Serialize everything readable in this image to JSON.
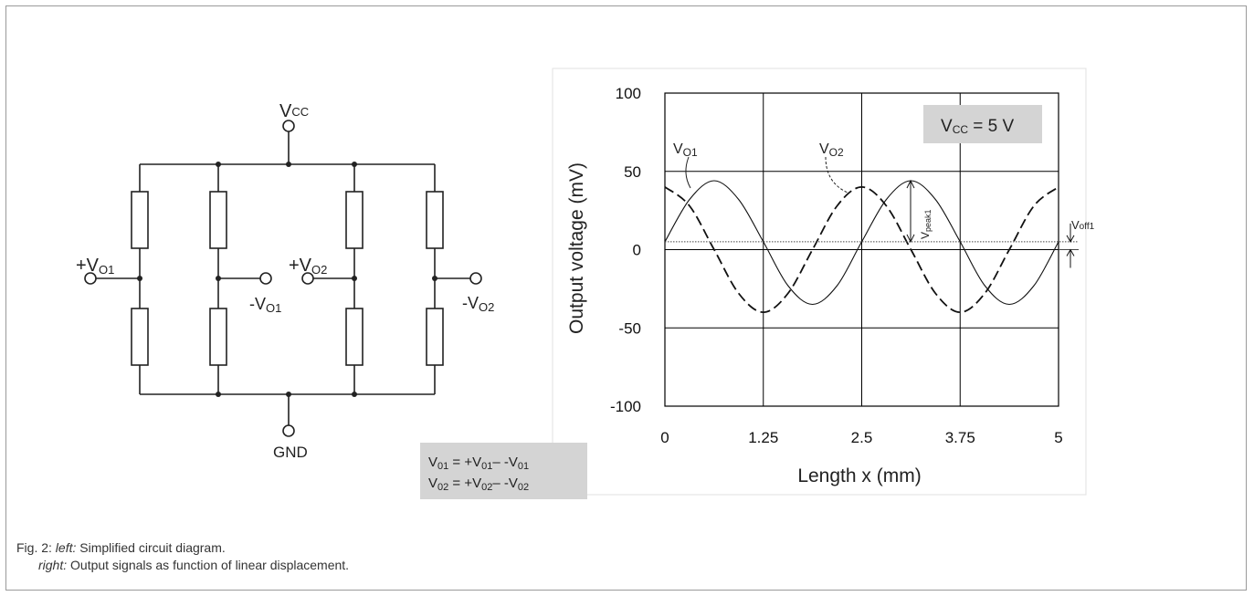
{
  "circuit": {
    "vcc": {
      "main": "V",
      "sub": "CC"
    },
    "gnd": "GND",
    "out_pos1": {
      "prefix": "+V",
      "sub": "O1"
    },
    "out_neg1": {
      "prefix": "-V",
      "sub": "O1"
    },
    "out_pos2": {
      "prefix": "+V",
      "sub": "O2"
    },
    "out_neg2": {
      "prefix": "-V",
      "sub": "O2"
    }
  },
  "equation_box": {
    "line1": {
      "lhs": "V",
      "lhs_sub": "01",
      "mid": " = +V",
      "mid_sub": "01",
      "op": "– -V",
      "end_sub": "01"
    },
    "line2": {
      "lhs": "V",
      "lhs_sub": "02",
      "mid": " = +V",
      "mid_sub": "02",
      "op": "– -V",
      "end_sub": "02"
    }
  },
  "chart_data": {
    "type": "line",
    "xlabel": "Length x (mm)",
    "ylabel": "Output voltage (mV)",
    "xlim": [
      0,
      5
    ],
    "ylim": [
      -100,
      100
    ],
    "x_ticks": [
      "0",
      "1.25",
      "2.5",
      "3.75",
      "5"
    ],
    "y_ticks": [
      "100",
      "50",
      "0",
      "-50",
      "-100"
    ],
    "grid": true,
    "vcc_box": {
      "main": "V",
      "sub": "CC",
      "rest": " = 5 V"
    },
    "series": [
      {
        "name": "V_O1",
        "label_main": "V",
        "label_sub": "O1",
        "style": "solid",
        "x": [
          0,
          0.3125,
          0.625,
          0.9375,
          1.25,
          1.5625,
          1.875,
          2.1875,
          2.5,
          2.8125,
          3.125,
          3.4375,
          3.75,
          4.0625,
          4.375,
          4.6875,
          5.0
        ],
        "y": [
          5,
          32,
          44,
          32,
          5,
          -23,
          -35,
          -23,
          5,
          32,
          44,
          32,
          5,
          -23,
          -35,
          -23,
          5
        ]
      },
      {
        "name": "V_O2",
        "label_main": "V",
        "label_sub": "O2",
        "style": "dashed",
        "x": [
          0,
          0.3125,
          0.625,
          0.9375,
          1.25,
          1.5625,
          1.875,
          2.1875,
          2.5,
          2.8125,
          3.125,
          3.4375,
          3.75,
          4.0625,
          4.375,
          4.6875,
          5.0
        ],
        "y": [
          40,
          28,
          0,
          -28,
          -40,
          -28,
          0,
          28,
          40,
          28,
          0,
          -28,
          -40,
          -28,
          0,
          28,
          40
        ]
      }
    ],
    "annotations": {
      "offset_line_mv": 5,
      "v_peak": {
        "main": "V",
        "sub": "peak1"
      },
      "v_off": {
        "main": "V",
        "sub": "off1"
      }
    }
  },
  "caption": {
    "line1_prefix": "Fig. 2: ",
    "line1_italic": "left:",
    "line1_rest": " Simplified circuit diagram.",
    "line2_italic": "right:",
    "line2_rest": " Output signals as function of linear displacement."
  }
}
